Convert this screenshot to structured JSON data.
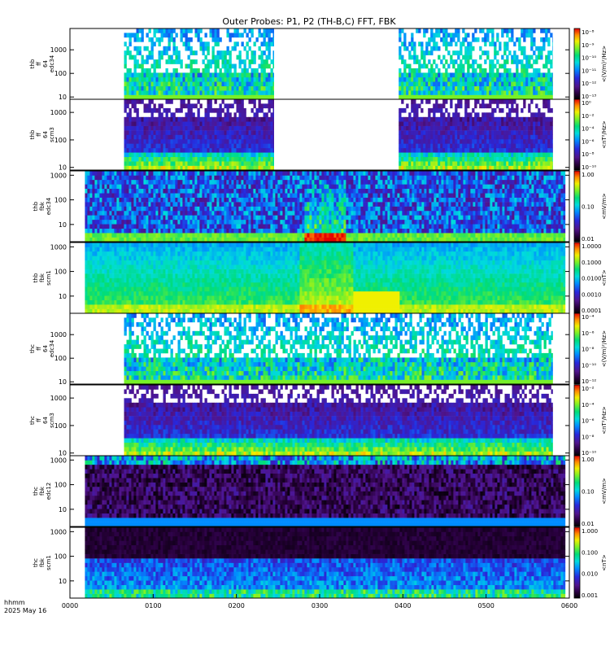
{
  "chart_data": {
    "type": "heatmap",
    "title": "Outer Probes: P1, P2 (TH-B,C) FFT, FBK",
    "footer": {
      "line1": "hhmm",
      "line2": "2025 May 16"
    },
    "x_ticks": [
      "0000",
      "0100",
      "0200",
      "0300",
      "0400",
      "0500",
      "0600"
    ],
    "xlim_hours": [
      0,
      6
    ],
    "panels": [
      {
        "ylabel": [
          "thb",
          "ff",
          "64",
          "edc34"
        ],
        "yscale": "log",
        "ylim": [
          8,
          8000
        ],
        "yticks": [
          "10",
          "100",
          "1000"
        ],
        "cbar_label": "<(V/m)²/Hz>",
        "cbar_ticks": [
          "10⁻⁸",
          "10⁻⁹",
          "10⁻¹⁰",
          "10⁻¹¹",
          "10⁻¹²",
          "10⁻¹³"
        ],
        "data_intervals_hours": [
          [
            0.65,
            2.45
          ],
          [
            3.95,
            5.8
          ]
        ],
        "style": "efield_ff"
      },
      {
        "ylabel": [
          "thb",
          "ff",
          "64",
          "scm3"
        ],
        "yscale": "log",
        "ylim": [
          8,
          3000
        ],
        "yticks": [
          "10",
          "100",
          "1000"
        ],
        "cbar_label": "<nT²/Hz>",
        "cbar_ticks": [
          "10⁰",
          "10⁻²",
          "10⁻⁴",
          "10⁻⁶",
          "10⁻⁸",
          "10⁻¹⁰"
        ],
        "data_intervals_hours": [
          [
            0.65,
            2.45
          ],
          [
            3.95,
            5.8
          ]
        ],
        "style": "scm_ff"
      },
      {
        "ylabel": [
          "thb",
          "fbk",
          "edc34"
        ],
        "yscale": "log",
        "ylim": [
          2,
          1500
        ],
        "yticks": [
          "10",
          "100",
          "1000"
        ],
        "cbar_label": "<mV/m>",
        "cbar_ticks": [
          "1.00",
          "0.10",
          "0.01"
        ],
        "data_intervals_hours": [
          [
            0.18,
            5.95
          ]
        ],
        "style": "fbk_e_b"
      },
      {
        "ylabel": [
          "thb",
          "fbk",
          "scm1"
        ],
        "yscale": "log",
        "ylim": [
          2,
          1500
        ],
        "yticks": [
          "10",
          "100",
          "1000"
        ],
        "cbar_label": "<nT>",
        "cbar_ticks": [
          "1.0000",
          "0.1000",
          "0.0100",
          "0.0010",
          "0.0001"
        ],
        "data_intervals_hours": [
          [
            0.18,
            5.95
          ]
        ],
        "style": "fbk_b_b"
      },
      {
        "ylabel": [
          "thc",
          "ff",
          "64",
          "edc34"
        ],
        "yscale": "log",
        "ylim": [
          8,
          8000
        ],
        "yticks": [
          "10",
          "100",
          "1000"
        ],
        "cbar_label": "<(V/m)²/Hz>",
        "cbar_ticks": [
          "10⁻⁴",
          "10⁻⁶",
          "10⁻⁸",
          "10⁻¹⁰",
          "10⁻¹²"
        ],
        "data_intervals_hours": [
          [
            0.65,
            5.8
          ]
        ],
        "style": "efield_ff"
      },
      {
        "ylabel": [
          "thc",
          "ff",
          "64",
          "scm3"
        ],
        "yscale": "log",
        "ylim": [
          8,
          3000
        ],
        "yticks": [
          "10",
          "100",
          "1000"
        ],
        "cbar_label": "<nT²/Hz>",
        "cbar_ticks": [
          "10⁻²",
          "10⁻⁴",
          "10⁻⁶",
          "10⁻⁸",
          "10⁻¹⁰"
        ],
        "data_intervals_hours": [
          [
            0.65,
            5.8
          ]
        ],
        "style": "scm_ff"
      },
      {
        "ylabel": [
          "thc",
          "fbk",
          "edc12"
        ],
        "yscale": "log",
        "ylim": [
          2,
          1500
        ],
        "yticks": [
          "10",
          "100",
          "1000"
        ],
        "cbar_label": "<mV/m>",
        "cbar_ticks": [
          "1.00",
          "0.10",
          "0.01"
        ],
        "data_intervals_hours": [
          [
            0.18,
            5.95
          ]
        ],
        "style": "fbk_e_c"
      },
      {
        "ylabel": [
          "thc",
          "fbk",
          "scm1"
        ],
        "yscale": "log",
        "ylim": [
          2,
          1500
        ],
        "yticks": [
          "10",
          "100",
          "1000"
        ],
        "cbar_label": "<nT>",
        "cbar_ticks": [
          "1.000",
          "0.100",
          "0.010",
          "0.001"
        ],
        "data_intervals_hours": [
          [
            0.18,
            5.95
          ]
        ],
        "style": "fbk_b_c"
      }
    ]
  }
}
